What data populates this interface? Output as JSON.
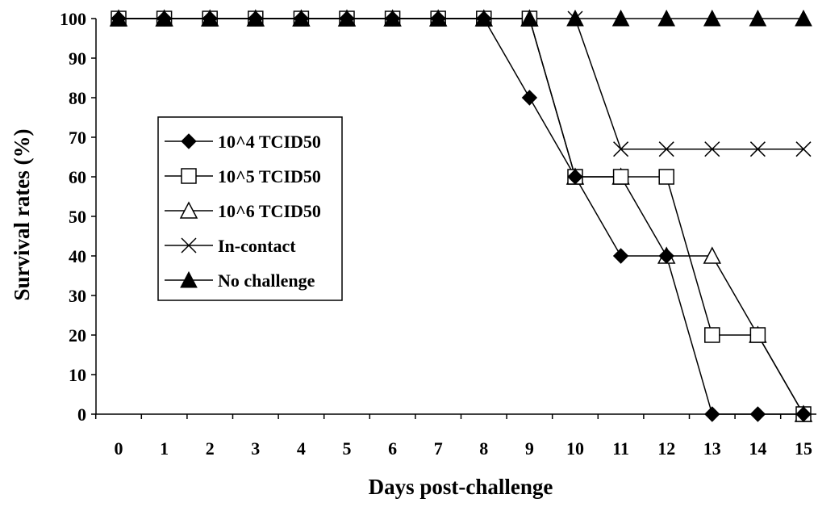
{
  "chart_data": {
    "type": "line",
    "title": "",
    "xlabel": "Days post-challenge",
    "ylabel": "Survival rates (%)",
    "x": [
      0,
      1,
      2,
      3,
      4,
      5,
      6,
      7,
      8,
      9,
      10,
      11,
      12,
      13,
      14,
      15
    ],
    "x_tick_labels": [
      "0",
      "1",
      "2",
      "3",
      "4",
      "5",
      "6",
      "7",
      "8",
      "9",
      "10",
      "11",
      "12",
      "13",
      "14",
      "15"
    ],
    "y_ticks": [
      0,
      10,
      20,
      30,
      40,
      50,
      60,
      70,
      80,
      90,
      100
    ],
    "y_tick_labels": [
      "0",
      "10",
      "20",
      "30",
      "40",
      "50",
      "60",
      "70",
      "80",
      "90",
      "100"
    ],
    "ylim": [
      0,
      100
    ],
    "grid": false,
    "legend_position": "left-middle",
    "series": [
      {
        "name": "10^4 TCID50",
        "marker": "diamond-filled",
        "color": "#000000",
        "values": [
          100,
          100,
          100,
          100,
          100,
          100,
          100,
          100,
          100,
          80,
          60,
          40,
          40,
          0,
          0,
          0
        ]
      },
      {
        "name": "10^5 TCID50",
        "marker": "square-open",
        "color": "#000000",
        "values": [
          100,
          100,
          100,
          100,
          100,
          100,
          100,
          100,
          100,
          100,
          60,
          60,
          60,
          20,
          20,
          0
        ]
      },
      {
        "name": "10^6 TCID50",
        "marker": "triangle-open",
        "color": "#000000",
        "values": [
          100,
          100,
          100,
          100,
          100,
          100,
          100,
          100,
          100,
          100,
          60,
          60,
          40,
          40,
          20,
          0
        ]
      },
      {
        "name": "In-contact",
        "marker": "x",
        "color": "#000000",
        "values": [
          100,
          100,
          100,
          100,
          100,
          100,
          100,
          100,
          100,
          100,
          100,
          67,
          67,
          67,
          67,
          67
        ]
      },
      {
        "name": "No challenge",
        "marker": "triangle-filled",
        "color": "#000000",
        "values": [
          100,
          100,
          100,
          100,
          100,
          100,
          100,
          100,
          100,
          100,
          100,
          100,
          100,
          100,
          100,
          100
        ]
      }
    ]
  }
}
